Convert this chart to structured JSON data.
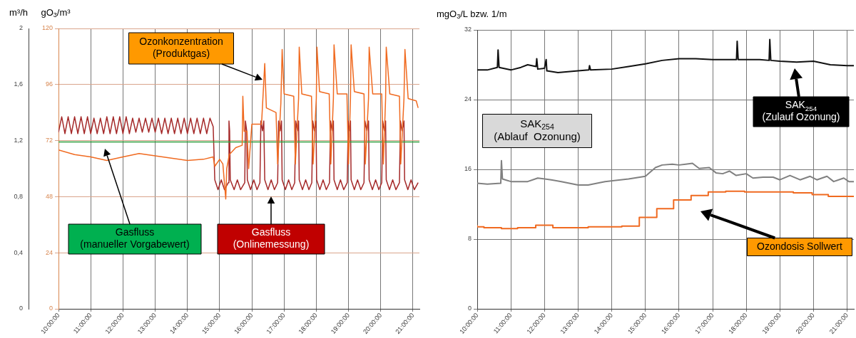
{
  "chart_data": [
    {
      "type": "line",
      "ylabel": "m³/h",
      "y2label": "gO$_{3}$/m³",
      "xlim": [
        10,
        21.2
      ],
      "xticks": [
        {
          "value": 10,
          "label": "10:00:00"
        },
        {
          "value": 11,
          "label": "11:00:00"
        },
        {
          "value": 12,
          "label": "12:00:00"
        },
        {
          "value": 13,
          "label": "13:00:00"
        },
        {
          "value": 14,
          "label": "14:00:00"
        },
        {
          "value": 15,
          "label": "15:00:00"
        },
        {
          "value": 16,
          "label": "16:00:00"
        },
        {
          "value": 17,
          "label": "17:00:00"
        },
        {
          "value": 18,
          "label": "18:00:00"
        },
        {
          "value": 19,
          "label": "19:00:00"
        },
        {
          "value": 20,
          "label": "20:00:00"
        },
        {
          "value": 21,
          "label": "21:00:00"
        }
      ],
      "ylim": [
        0,
        2
      ],
      "yticks": [
        0,
        {
          "value": 0.4,
          "label": "0,4"
        },
        {
          "value": 0.8,
          "label": "0,8"
        },
        {
          "value": 1.2,
          "label": "1,2"
        },
        {
          "value": 1.6,
          "label": "1,6"
        },
        2
      ],
      "y2lim": [
        0,
        120
      ],
      "y2ticks": [
        0,
        24,
        48,
        72,
        96,
        120
      ],
      "grid": true,
      "legend": false,
      "marker": "none",
      "annotations": [
        "Gasfluss\n(Onlinemessung)",
        "Gasfluss\n(manueller Vorgabewert)",
        "Ozonkonzentration\n(Produktgas)"
      ],
      "series": [
        {
          "color": "#a52a2a",
          "axis": "y",
          "x": [
            10.0,
            10.1,
            10.2,
            10.3,
            10.4,
            10.5,
            10.6,
            10.7,
            10.8,
            10.9,
            11.0,
            11.1,
            11.2,
            11.3,
            11.4,
            11.5,
            11.6,
            11.7,
            11.8,
            11.9,
            12.0,
            12.1,
            12.2,
            12.3,
            12.4,
            12.5,
            12.6,
            12.7,
            12.8,
            12.9,
            13.0,
            13.1,
            13.2,
            13.3,
            13.4,
            13.5,
            13.6,
            13.7,
            13.8,
            13.9,
            14.0,
            14.1,
            14.2,
            14.3,
            14.4,
            14.5,
            14.6,
            14.7,
            14.8,
            14.85,
            14.95,
            15.05,
            15.15,
            15.27,
            15.29,
            15.31,
            15.33,
            15.45,
            15.55,
            15.65,
            15.78,
            15.8,
            15.84,
            15.86,
            15.96,
            16.06,
            16.16,
            16.25,
            16.28,
            16.33,
            16.37,
            16.4,
            16.5,
            16.6,
            16.7,
            16.8,
            16.83,
            16.88,
            16.92,
            16.94,
            17.04,
            17.14,
            17.24,
            17.33,
            17.36,
            17.41,
            17.45,
            17.47,
            17.57,
            17.67,
            17.77,
            17.86,
            17.89,
            17.94,
            17.99,
            18.01,
            18.11,
            18.21,
            18.31,
            18.41,
            18.44,
            18.49,
            18.53,
            18.55,
            18.65,
            18.75,
            18.85,
            18.96,
            18.99,
            19.03,
            19.06,
            19.08,
            19.18,
            19.28,
            19.38,
            19.48,
            19.51,
            19.57,
            19.62,
            19.64,
            19.74,
            19.84,
            19.94,
            20.03,
            20.06,
            20.11,
            20.15,
            20.17,
            20.27,
            20.37,
            20.47,
            20.58,
            20.61,
            20.66,
            20.72,
            20.74,
            20.84,
            20.94,
            21.04,
            21.16
          ],
          "values": [
            1.26,
            1.37,
            1.25,
            1.37,
            1.25,
            1.37,
            1.25,
            1.37,
            1.25,
            1.37,
            1.25,
            1.36,
            1.25,
            1.36,
            1.25,
            1.37,
            1.25,
            1.37,
            1.25,
            1.37,
            1.25,
            1.37,
            1.25,
            1.36,
            1.26,
            1.36,
            1.26,
            1.36,
            1.26,
            1.36,
            1.26,
            1.36,
            1.25,
            1.36,
            1.25,
            1.36,
            1.25,
            1.36,
            1.25,
            1.36,
            1.25,
            1.36,
            1.25,
            1.36,
            1.25,
            1.36,
            1.25,
            1.36,
            1.3,
            0.92,
            0.85,
            0.92,
            0.85,
            0.9,
            1.34,
            1.27,
            0.92,
            0.85,
            0.92,
            0.85,
            0.9,
            1.34,
            1.27,
            0.92,
            0.85,
            0.92,
            0.85,
            0.9,
            1.34,
            1.27,
            1.34,
            0.92,
            0.85,
            0.92,
            0.85,
            0.9,
            1.34,
            1.27,
            1.34,
            0.92,
            0.85,
            0.92,
            0.85,
            0.9,
            1.34,
            1.27,
            1.34,
            0.92,
            0.85,
            0.92,
            0.85,
            0.9,
            1.34,
            1.27,
            1.34,
            0.92,
            0.85,
            0.92,
            0.85,
            0.9,
            1.34,
            1.27,
            1.34,
            0.92,
            0.85,
            0.92,
            0.85,
            0.9,
            1.34,
            1.27,
            1.34,
            0.92,
            0.85,
            0.92,
            0.85,
            0.9,
            1.34,
            1.27,
            1.34,
            0.92,
            0.85,
            0.92,
            0.85,
            0.9,
            1.34,
            1.27,
            1.34,
            0.92,
            0.85,
            0.92,
            0.85,
            0.9,
            1.34,
            1.27,
            1.34,
            0.92,
            0.85,
            0.92,
            0.85,
            0.9
          ]
        },
        {
          "color": "#2e9e3e",
          "axis": "y",
          "x": [
            10,
            21.2
          ],
          "values": [
            1.19,
            1.19
          ]
        },
        {
          "color": "#f06a20",
          "axis": "y2",
          "x": [
            10.0,
            10.5,
            11.0,
            11.5,
            12.0,
            12.5,
            13.0,
            13.5,
            14.0,
            14.5,
            14.8,
            14.85,
            15.0,
            15.1,
            15.19,
            15.22,
            15.3,
            15.5,
            15.7,
            15.72,
            15.76,
            15.85,
            15.9,
            16.0,
            16.3,
            16.4,
            16.45,
            16.75,
            16.8,
            16.9,
            16.94,
            17.0,
            17.3,
            17.35,
            17.45,
            17.47,
            17.55,
            17.85,
            17.9,
            18.0,
            18.02,
            18.1,
            18.4,
            18.45,
            18.53,
            18.55,
            18.65,
            18.95,
            19.0,
            19.06,
            19.08,
            19.18,
            19.48,
            19.52,
            19.62,
            19.64,
            19.75,
            20.03,
            20.08,
            20.15,
            20.17,
            20.28,
            20.58,
            20.62,
            20.72,
            20.75,
            20.85,
            21.1,
            21.16
          ],
          "values": [
            68,
            66,
            65,
            63.5,
            65,
            66.5,
            65.5,
            64.5,
            63.5,
            64,
            65,
            61,
            64,
            62,
            47,
            60,
            66,
            69,
            70,
            91,
            76,
            76,
            60,
            79,
            79,
            105,
            86,
            84,
            62,
            88,
            111,
            92,
            91,
            62,
            90,
            112,
            92,
            91,
            62,
            90,
            112,
            93,
            92,
            62,
            90,
            113,
            92,
            92,
            62,
            90,
            113,
            93,
            92,
            62,
            90,
            112,
            92,
            92,
            62,
            90,
            112,
            92,
            91,
            62,
            90,
            111,
            90,
            89,
            86
          ]
        }
      ]
    },
    {
      "type": "line",
      "ylabel": "mgO$_{3}$/L bzw. 1/m",
      "xlim": [
        10,
        21.2
      ],
      "xticks": [
        {
          "value": 10,
          "label": "10:00:00"
        },
        {
          "value": 11,
          "label": "11:00:00"
        },
        {
          "value": 12,
          "label": "12:00:00"
        },
        {
          "value": 13,
          "label": "13:00:00"
        },
        {
          "value": 14,
          "label": "14:00:00"
        },
        {
          "value": 15,
          "label": "15:00:00"
        },
        {
          "value": 16,
          "label": "16:00:00"
        },
        {
          "value": 17,
          "label": "17:00:00"
        },
        {
          "value": 18,
          "label": "18:00:00"
        },
        {
          "value": 19,
          "label": "19:00:00"
        },
        {
          "value": 20,
          "label": "20:00:00"
        },
        {
          "value": 21,
          "label": "21:00:00"
        }
      ],
      "ylim": [
        0,
        32
      ],
      "yticks": [
        0,
        8,
        16,
        24,
        32
      ],
      "grid": true,
      "legend": false,
      "marker": "none",
      "annotations": [
        "SAK$_{254}$\n(Zulauf Ozonung)",
        "SAK$_{254}$\n(Ablauf  Ozonung)",
        "Ozondosis Sollwert"
      ],
      "series": [
        {
          "color": "#111111",
          "x": [
            10.0,
            10.3,
            10.6,
            10.62,
            10.65,
            11.0,
            11.3,
            11.5,
            11.75,
            11.77,
            11.8,
            12.0,
            12.05,
            12.07,
            12.4,
            13.0,
            13.32,
            13.34,
            13.37,
            14.0,
            14.5,
            15.0,
            15.5,
            16.0,
            16.5,
            17.0,
            17.5,
            17.71,
            17.73,
            17.76,
            18.0,
            18.4,
            18.68,
            18.7,
            18.73,
            19.0,
            19.5,
            20.0,
            20.5,
            21.0,
            21.2
          ],
          "values": [
            27.4,
            27.4,
            27.7,
            29.7,
            27.7,
            27.4,
            27.7,
            28.0,
            27.8,
            28.7,
            27.5,
            27.6,
            28.6,
            27.3,
            27.1,
            27.3,
            27.4,
            27.9,
            27.4,
            27.5,
            27.8,
            28.1,
            28.5,
            28.7,
            28.7,
            28.6,
            28.6,
            28.6,
            30.7,
            28.6,
            28.6,
            28.6,
            28.5,
            30.9,
            28.5,
            28.4,
            28.3,
            28.4,
            28.0,
            27.9,
            27.9
          ]
        },
        {
          "color": "#808080",
          "x": [
            10.0,
            10.3,
            10.7,
            10.72,
            10.75,
            11.0,
            11.5,
            11.8,
            12.2,
            12.5,
            13.0,
            13.3,
            13.8,
            14.5,
            15.0,
            15.3,
            15.5,
            15.8,
            16.0,
            16.2,
            16.4,
            16.6,
            16.9,
            17.1,
            17.3,
            17.5,
            17.7,
            18.0,
            18.2,
            18.5,
            18.8,
            19.0,
            19.3,
            19.6,
            19.9,
            20.1,
            20.4,
            20.6,
            20.9,
            21.05,
            21.2
          ],
          "values": [
            14.4,
            14.3,
            14.4,
            17.0,
            14.9,
            14.6,
            14.6,
            15.0,
            14.8,
            14.6,
            14.2,
            14.2,
            14.6,
            14.9,
            15.2,
            16.2,
            16.5,
            16.6,
            16.5,
            16.6,
            16.7,
            16.1,
            16.2,
            15.6,
            15.5,
            15.8,
            15.3,
            15.5,
            15.0,
            15.1,
            15.1,
            14.8,
            15.3,
            14.8,
            15.2,
            14.8,
            15.2,
            14.6,
            15.0,
            14.6,
            14.6
          ]
        },
        {
          "type": "step",
          "color": "#f06a20",
          "x": [
            10.0,
            10.2,
            10.72,
            11.2,
            11.74,
            12.25,
            13.3,
            14.3,
            14.82,
            15.34,
            15.84,
            16.36,
            16.87,
            17.39,
            17.95,
            19.4,
            19.96,
            20.44,
            20.96,
            21.2
          ],
          "values": [
            9.6,
            9.4,
            9.3,
            9.2,
            9.3,
            9.6,
            9.3,
            9.4,
            9.5,
            10.5,
            11.5,
            12.5,
            13.0,
            13.4,
            13.5,
            13.4,
            13.3,
            13.1,
            12.9,
            12.9
          ]
        }
      ]
    }
  ]
}
